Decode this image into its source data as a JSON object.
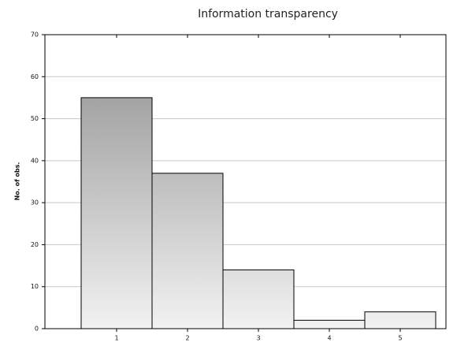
{
  "chart_data": {
    "type": "bar",
    "title": "Information transparency",
    "y_label": "No. of obs.",
    "categories": [
      "1",
      "2",
      "3",
      "4",
      "5"
    ],
    "values": [
      55,
      37,
      14,
      2,
      4
    ],
    "ylim": [
      0,
      70
    ],
    "yticks": [
      0,
      10,
      20,
      30,
      40,
      50,
      60,
      70
    ],
    "grid": true
  }
}
